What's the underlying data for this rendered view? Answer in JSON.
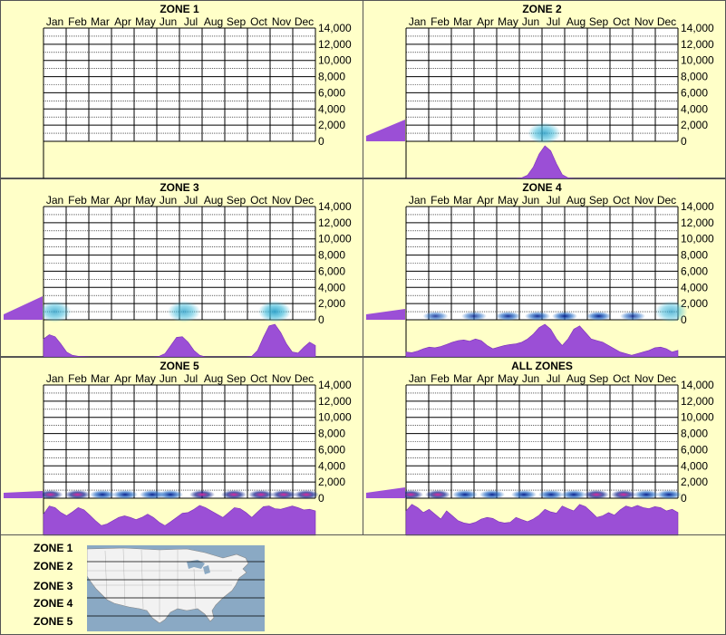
{
  "months": [
    "Jan",
    "Feb",
    "Mar",
    "Apr",
    "May",
    "Jun",
    "Jul",
    "Aug",
    "Sep",
    "Oct",
    "Nov",
    "Dec"
  ],
  "y_ticks": [
    "14,000",
    "12,000",
    "10,000",
    "8,000",
    "6,000",
    "4,000",
    "2,000",
    "0"
  ],
  "colors": {
    "background": "#FFFFC8",
    "grid": "#000000",
    "purple": "#9B4FD6",
    "purple_dark": "#7A2FB8",
    "glow": "#46BEDC",
    "navy": "#0A1F8C",
    "magenta": "#E0289E",
    "map_water": "#8AA9C4",
    "map_land": "#F2F2F2"
  },
  "chart_data": [
    {
      "title": "ZONE 1",
      "type": "heatmap",
      "ylim": [
        0,
        14000
      ],
      "elevation_profile_max": 0,
      "heat_blobs": [],
      "seasonal_profile": []
    },
    {
      "title": "ZONE 2",
      "type": "heatmap",
      "ylim": [
        0,
        14000
      ],
      "elevation_profile_max": 0.6,
      "heat_blobs": [
        {
          "month": 6.1,
          "intensity": 0.5,
          "level": "glow"
        }
      ],
      "seasonal_profile": [
        0,
        0,
        0,
        0,
        0,
        0,
        0,
        0,
        0,
        0,
        0,
        0,
        0,
        0,
        0,
        0,
        0,
        0,
        0,
        0,
        0.02,
        0.1,
        0.35,
        0.75,
        1.0,
        0.85,
        0.45,
        0.12,
        0.02,
        0,
        0,
        0,
        0,
        0,
        0,
        0,
        0,
        0,
        0,
        0,
        0,
        0,
        0,
        0,
        0,
        0,
        0,
        0
      ]
    },
    {
      "title": "ZONE 3",
      "type": "heatmap",
      "ylim": [
        0,
        14000
      ],
      "elevation_profile_max": 0.65,
      "heat_blobs": [
        {
          "month": 0.5,
          "intensity": 0.45,
          "level": "glow"
        },
        {
          "month": 6.2,
          "intensity": 0.45,
          "level": "glow"
        },
        {
          "month": 10.2,
          "intensity": 0.6,
          "level": "glow"
        }
      ],
      "seasonal_profile": [
        0.55,
        0.68,
        0.62,
        0.4,
        0.15,
        0.05,
        0.02,
        0.01,
        0,
        0,
        0,
        0,
        0,
        0,
        0,
        0,
        0,
        0,
        0,
        0,
        0.02,
        0.1,
        0.35,
        0.6,
        0.62,
        0.45,
        0.2,
        0.05,
        0,
        0,
        0,
        0,
        0,
        0,
        0,
        0,
        0.02,
        0.2,
        0.6,
        0.95,
        1.0,
        0.75,
        0.4,
        0.15,
        0.12,
        0.3,
        0.45,
        0.35
      ]
    },
    {
      "title": "ZONE 4",
      "type": "heatmap",
      "ylim": [
        0,
        14000
      ],
      "elevation_profile_max": 0.3,
      "heat_blobs": [
        {
          "month": 1.3,
          "intensity": 0.5,
          "level": "navy"
        },
        {
          "month": 3.0,
          "intensity": 0.5,
          "level": "navy"
        },
        {
          "month": 4.5,
          "intensity": 0.6,
          "level": "navy"
        },
        {
          "month": 5.8,
          "intensity": 0.6,
          "level": "navy"
        },
        {
          "month": 7.0,
          "intensity": 0.85,
          "level": "navy"
        },
        {
          "month": 8.5,
          "intensity": 0.75,
          "level": "navy"
        },
        {
          "month": 10.0,
          "intensity": 0.5,
          "level": "navy"
        },
        {
          "month": 11.7,
          "intensity": 0.4,
          "level": "glow"
        }
      ],
      "seasonal_profile": [
        0.15,
        0.13,
        0.18,
        0.25,
        0.3,
        0.28,
        0.32,
        0.38,
        0.45,
        0.5,
        0.52,
        0.48,
        0.55,
        0.5,
        0.35,
        0.25,
        0.3,
        0.35,
        0.38,
        0.4,
        0.45,
        0.55,
        0.7,
        0.9,
        1.0,
        0.85,
        0.55,
        0.35,
        0.55,
        0.85,
        0.95,
        0.75,
        0.55,
        0.5,
        0.45,
        0.35,
        0.25,
        0.15,
        0.1,
        0.05,
        0.1,
        0.15,
        0.2,
        0.28,
        0.3,
        0.25,
        0.15,
        0.2
      ]
    },
    {
      "title": "ZONE 5",
      "type": "heatmap",
      "ylim": [
        0,
        14000
      ],
      "elevation_profile_max": 0.2,
      "heat_blobs": [
        {
          "month": 0.3,
          "intensity": 0.9,
          "level": "magenta"
        },
        {
          "month": 1.5,
          "intensity": 0.8,
          "level": "magenta"
        },
        {
          "month": 2.6,
          "intensity": 0.7,
          "level": "navy"
        },
        {
          "month": 3.6,
          "intensity": 0.75,
          "level": "navy"
        },
        {
          "month": 4.8,
          "intensity": 0.75,
          "level": "navy"
        },
        {
          "month": 5.6,
          "intensity": 0.7,
          "level": "navy"
        },
        {
          "month": 7.0,
          "intensity": 0.85,
          "level": "magenta"
        },
        {
          "month": 8.4,
          "intensity": 0.85,
          "level": "magenta"
        },
        {
          "month": 9.6,
          "intensity": 0.9,
          "level": "magenta"
        },
        {
          "month": 10.6,
          "intensity": 0.9,
          "level": "magenta"
        },
        {
          "month": 11.6,
          "intensity": 0.85,
          "level": "magenta"
        }
      ],
      "seasonal_profile": [
        0.65,
        0.9,
        0.85,
        0.7,
        0.6,
        0.72,
        0.85,
        0.78,
        0.62,
        0.45,
        0.3,
        0.35,
        0.45,
        0.55,
        0.6,
        0.55,
        0.48,
        0.55,
        0.65,
        0.55,
        0.4,
        0.3,
        0.42,
        0.55,
        0.68,
        0.7,
        0.8,
        0.92,
        0.85,
        0.75,
        0.65,
        0.55,
        0.7,
        0.85,
        0.82,
        0.7,
        0.55,
        0.72,
        0.88,
        0.9,
        0.82,
        0.8,
        0.85,
        0.9,
        0.85,
        0.78,
        0.8,
        0.75
      ]
    },
    {
      "title": "ALL ZONES",
      "type": "heatmap",
      "ylim": [
        0,
        14000
      ],
      "elevation_profile_max": 0.3,
      "heat_blobs": [
        {
          "month": 0.2,
          "intensity": 0.9,
          "level": "magenta"
        },
        {
          "month": 1.4,
          "intensity": 0.75,
          "level": "magenta"
        },
        {
          "month": 2.6,
          "intensity": 0.7,
          "level": "navy"
        },
        {
          "month": 3.8,
          "intensity": 0.7,
          "level": "navy"
        },
        {
          "month": 5.2,
          "intensity": 0.7,
          "level": "navy"
        },
        {
          "month": 6.4,
          "intensity": 0.8,
          "level": "navy"
        },
        {
          "month": 7.4,
          "intensity": 0.8,
          "level": "navy"
        },
        {
          "month": 8.4,
          "intensity": 0.9,
          "level": "magenta"
        },
        {
          "month": 9.6,
          "intensity": 0.9,
          "level": "magenta"
        },
        {
          "month": 10.6,
          "intensity": 0.8,
          "level": "navy"
        },
        {
          "month": 11.6,
          "intensity": 0.8,
          "level": "navy"
        }
      ],
      "seasonal_profile": [
        0.75,
        0.95,
        0.85,
        0.7,
        0.8,
        0.65,
        0.5,
        0.75,
        0.6,
        0.45,
        0.38,
        0.35,
        0.4,
        0.5,
        0.55,
        0.52,
        0.42,
        0.38,
        0.4,
        0.55,
        0.48,
        0.42,
        0.5,
        0.62,
        0.8,
        0.72,
        0.68,
        0.9,
        0.82,
        0.75,
        0.95,
        0.88,
        0.72,
        0.55,
        0.6,
        0.7,
        0.62,
        0.78,
        0.9,
        0.85,
        0.92,
        0.85,
        0.82,
        0.88,
        0.85,
        0.75,
        0.8,
        0.7
      ]
    }
  ],
  "legend": {
    "zones": [
      "ZONE 1",
      "ZONE 2",
      "ZONE 3",
      "ZONE 4",
      "ZONE 5"
    ]
  }
}
